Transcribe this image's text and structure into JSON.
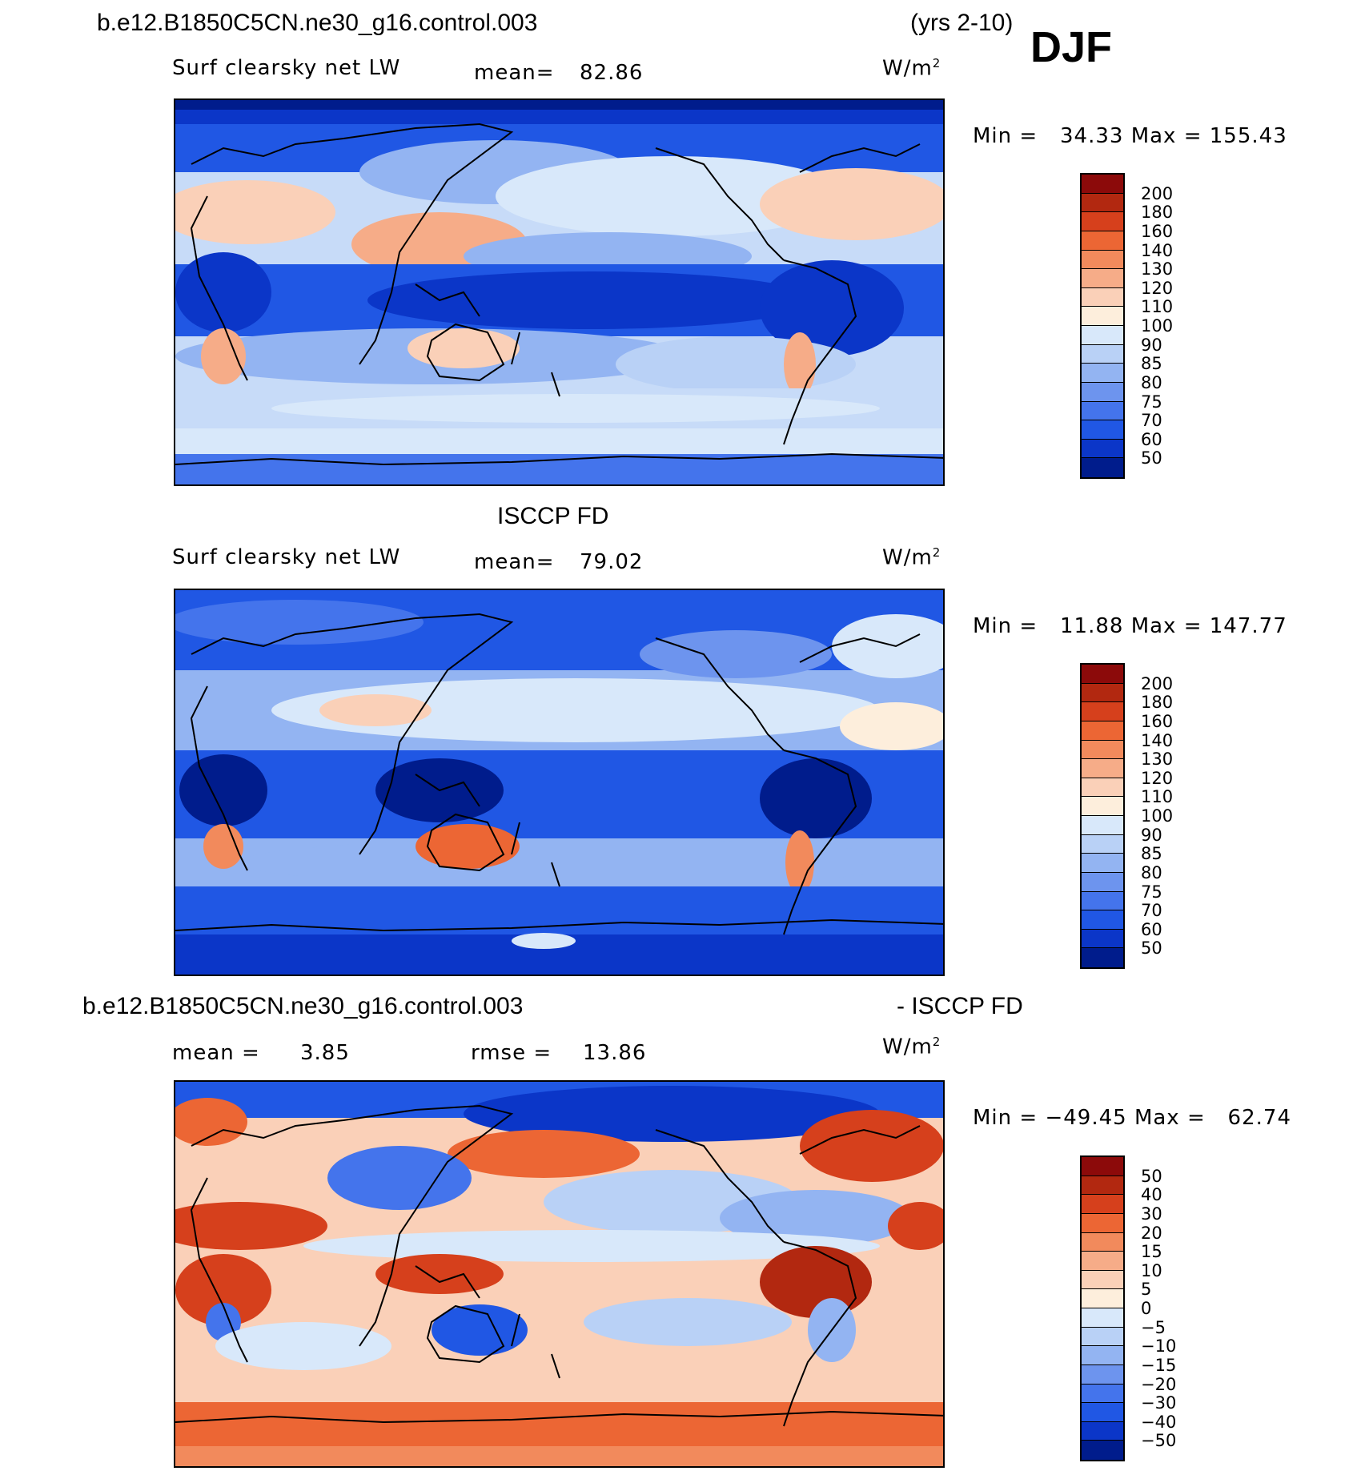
{
  "header": {
    "case_name": "b.e12.B1850C5CN.ne30_g16.control.003",
    "years": "(yrs 2-10)",
    "season": "DJF"
  },
  "panels": [
    {
      "id": "model",
      "heading": "",
      "variable": "Surf clearsky net LW",
      "mean_label": "mean=",
      "mean_value": "82.86",
      "units": "W/m",
      "units_sup": "2",
      "min_label": "Min =",
      "min_value": "34.33",
      "max_label": "Max =",
      "max_value": "155.43",
      "colorbar_labels": [
        "200",
        "180",
        "160",
        "140",
        "130",
        "120",
        "110",
        "100",
        "90",
        "85",
        "80",
        "75",
        "70",
        "60",
        "50"
      ],
      "colorbar_colors": [
        "#8c0a0a",
        "#b22810",
        "#d6401c",
        "#ec6634",
        "#f28a5c",
        "#f6ac88",
        "#fad0b8",
        "#fdeedc",
        "#d8e8fa",
        "#b9d1f6",
        "#93b4f2",
        "#6d94ee",
        "#4474ec",
        "#2057e4",
        "#0b36c8",
        "#001c8c"
      ]
    },
    {
      "id": "obs",
      "heading": "ISCCP FD",
      "variable": "Surf clearsky net LW",
      "mean_label": "mean=",
      "mean_value": "79.02",
      "units": "W/m",
      "units_sup": "2",
      "min_label": "Min =",
      "min_value": "11.88",
      "max_label": "Max =",
      "max_value": "147.77",
      "colorbar_labels": [
        "200",
        "180",
        "160",
        "140",
        "130",
        "120",
        "110",
        "100",
        "90",
        "85",
        "80",
        "75",
        "70",
        "60",
        "50"
      ],
      "colorbar_colors": [
        "#8c0a0a",
        "#b22810",
        "#d6401c",
        "#ec6634",
        "#f28a5c",
        "#f6ac88",
        "#fad0b8",
        "#fdeedc",
        "#d8e8fa",
        "#b9d1f6",
        "#93b4f2",
        "#6d94ee",
        "#4474ec",
        "#2057e4",
        "#0b36c8",
        "#001c8c"
      ]
    },
    {
      "id": "diff",
      "heading_left": "b.e12.B1850C5CN.ne30_g16.control.003",
      "heading_right": "- ISCCP FD",
      "mean_label": "mean =",
      "mean_value": "3.85",
      "rmse_label": "rmse =",
      "rmse_value": "13.86",
      "units": "W/m",
      "units_sup": "2",
      "min_label": "Min =",
      "min_value": "−49.45",
      "max_label": "Max =",
      "max_value": "62.74",
      "colorbar_labels": [
        "50",
        "40",
        "30",
        "20",
        "15",
        "10",
        "5",
        "0",
        "−5",
        "−10",
        "−15",
        "−20",
        "−30",
        "−40",
        "−50"
      ],
      "colorbar_colors": [
        "#8c0a0a",
        "#b22810",
        "#d6401c",
        "#ec6634",
        "#f28a5c",
        "#f6ac88",
        "#fad0b8",
        "#fdeedc",
        "#d8e8fa",
        "#b9d1f6",
        "#93b4f2",
        "#6d94ee",
        "#4474ec",
        "#2057e4",
        "#0b36c8",
        "#001c8c"
      ]
    }
  ]
}
